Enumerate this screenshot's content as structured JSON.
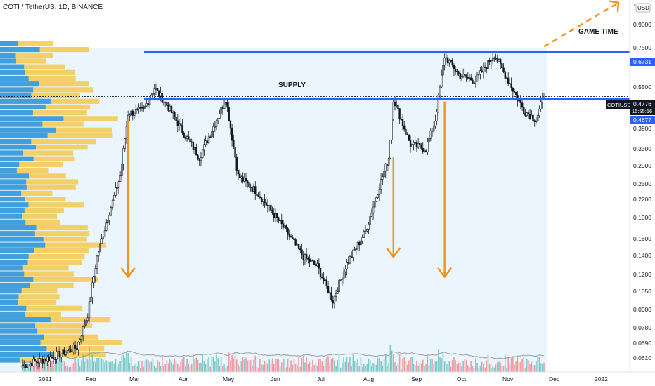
{
  "header": {
    "symbol_line": "COTI / TetherUS, 1D, BINANCE"
  },
  "price_axis": {
    "currency_label": "USDT",
    "top_label": "1",
    "ticks": [
      "0.9000",
      "0.7500",
      "0.6731",
      "0.5500",
      "0.4776",
      "0.4677",
      "0.3900",
      "0.3300",
      "0.2900",
      "0.2500",
      "0.2200",
      "0.1900",
      "0.1600",
      "0.1400",
      "0.1200",
      "0.1050",
      "0.0900",
      "0.0780",
      "0.0690",
      "0.0610"
    ],
    "ticker_badge": "COTIUSDT",
    "last_price": "0.4776",
    "countdown": "15:55:16"
  },
  "time_axis": {
    "labels": [
      "2021",
      "Feb",
      "Mar",
      "Apr",
      "May",
      "Jun",
      "Jul",
      "Aug",
      "Sep",
      "Oct",
      "Nov",
      "Dec",
      "2022"
    ]
  },
  "annotations": {
    "supply_label": "SUPPLY",
    "game_time_label": "GAME TIME"
  },
  "levels": {
    "upper_resistance": {
      "value": 0.6731,
      "label": "0.6731"
    },
    "lower_resistance": {
      "value": 0.4677,
      "label": "0.4677"
    }
  },
  "colors": {
    "up": "#26a69a",
    "down": "#ef5350",
    "candle": "#131722",
    "level_line": "#2962ff",
    "arrow": "#f7931a",
    "vp_up": "#2196f3",
    "vp_down": "#f5c542",
    "zone": "#e3f2fd",
    "volume_ma": "#9e9e9e"
  },
  "chart_data": {
    "type": "candlestick",
    "symbol": "COTI / TetherUS",
    "interval": "1D",
    "exchange": "BINANCE",
    "y_scale": "log",
    "ylim": [
      0.058,
      1.0
    ],
    "x_range": [
      "2021-01-01",
      "2022-01-20"
    ],
    "close_path": [
      {
        "date": "2021-01-01",
        "close": 0.061
      },
      {
        "date": "2021-01-20",
        "close": 0.065
      },
      {
        "date": "2021-02-05",
        "close": 0.07
      },
      {
        "date": "2021-02-12",
        "close": 0.09
      },
      {
        "date": "2021-02-18",
        "close": 0.14
      },
      {
        "date": "2021-02-25",
        "close": 0.19
      },
      {
        "date": "2021-03-05",
        "close": 0.26
      },
      {
        "date": "2021-03-10",
        "close": 0.42
      },
      {
        "date": "2021-03-20",
        "close": 0.43
      },
      {
        "date": "2021-03-27",
        "close": 0.51
      },
      {
        "date": "2021-04-05",
        "close": 0.44
      },
      {
        "date": "2021-04-15",
        "close": 0.36
      },
      {
        "date": "2021-04-25",
        "close": 0.3
      },
      {
        "date": "2021-05-05",
        "close": 0.39
      },
      {
        "date": "2021-05-12",
        "close": 0.47
      },
      {
        "date": "2021-05-20",
        "close": 0.26
      },
      {
        "date": "2021-06-01",
        "close": 0.23
      },
      {
        "date": "2021-06-10",
        "close": 0.2
      },
      {
        "date": "2021-06-20",
        "close": 0.17
      },
      {
        "date": "2021-07-01",
        "close": 0.14
      },
      {
        "date": "2021-07-10",
        "close": 0.13
      },
      {
        "date": "2021-07-20",
        "close": 0.1
      },
      {
        "date": "2021-07-28",
        "close": 0.13
      },
      {
        "date": "2021-08-10",
        "close": 0.17
      },
      {
        "date": "2021-08-20",
        "close": 0.25
      },
      {
        "date": "2021-08-25",
        "close": 0.3
      },
      {
        "date": "2021-08-28",
        "close": 0.47
      },
      {
        "date": "2021-09-08",
        "close": 0.33
      },
      {
        "date": "2021-09-18",
        "close": 0.32
      },
      {
        "date": "2021-09-24",
        "close": 0.4
      },
      {
        "date": "2021-09-30",
        "close": 0.65
      },
      {
        "date": "2021-10-10",
        "close": 0.56
      },
      {
        "date": "2021-10-20",
        "close": 0.54
      },
      {
        "date": "2021-11-01",
        "close": 0.66
      },
      {
        "date": "2021-11-10",
        "close": 0.54
      },
      {
        "date": "2021-11-20",
        "close": 0.43
      },
      {
        "date": "2021-11-28",
        "close": 0.4
      },
      {
        "date": "2021-12-03",
        "close": 0.4776
      }
    ],
    "levels": [
      0.6731,
      0.4677
    ],
    "projection": {
      "from": {
        "date": "2021-12-03",
        "price": 0.7
      },
      "to": {
        "date": "2022-01-20",
        "price": 0.98
      }
    },
    "arrows": [
      {
        "date": "2021-03-10",
        "from": 0.4,
        "to": 0.12
      },
      {
        "date": "2021-08-28",
        "from": 0.3,
        "to": 0.14
      },
      {
        "date": "2021-09-30",
        "from": 0.46,
        "to": 0.12
      }
    ]
  }
}
